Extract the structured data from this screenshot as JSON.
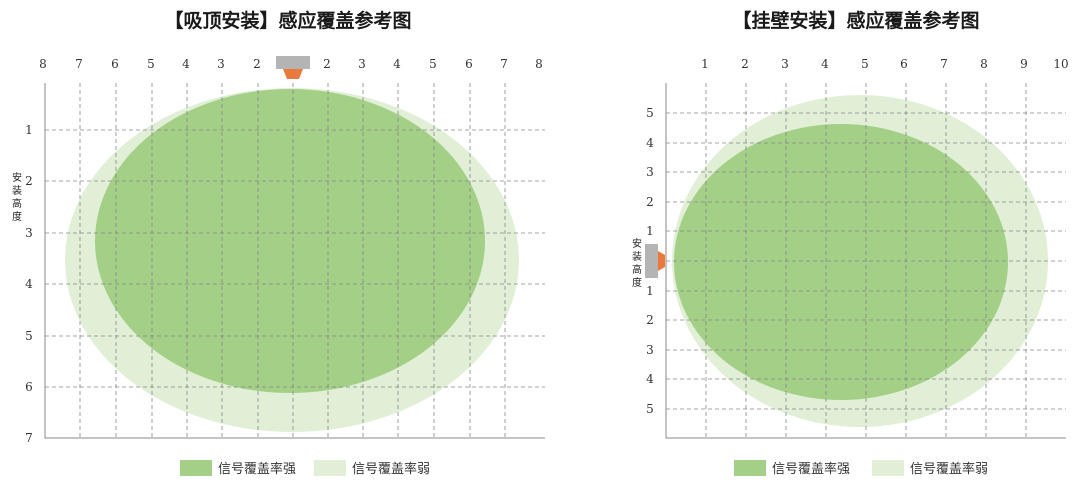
{
  "colors": {
    "strong": "#a3cf87",
    "weak": "#e0efd6",
    "grid": "#888888",
    "frame": "#888888",
    "sensor_body": "#b4b4b4",
    "sensor_lens": "#ea7a3c"
  },
  "left_panel": {
    "title": "【吸顶安装】感应覆盖参考图",
    "top_ticks": [
      "8",
      "7",
      "6",
      "5",
      "4",
      "3",
      "2",
      "2",
      "3",
      "4",
      "5",
      "6",
      "7",
      "8"
    ],
    "left_ticks": [
      "1",
      "2",
      "3",
      "4",
      "5",
      "6",
      "7"
    ],
    "height_label": [
      "安",
      "装",
      "高",
      "度"
    ],
    "legend_strong": "信号覆盖率强",
    "legend_weak": "信号覆盖率弱"
  },
  "right_panel": {
    "title": "【挂壁安装】感应覆盖参考图",
    "top_ticks": [
      "1",
      "2",
      "3",
      "4",
      "5",
      "6",
      "7",
      "8",
      "9",
      "10"
    ],
    "left_ticks_up": [
      "5",
      "4",
      "3",
      "2",
      "1"
    ],
    "left_ticks_down": [
      "1",
      "2",
      "3",
      "4",
      "5"
    ],
    "height_label": [
      "安",
      "装",
      "高",
      "度"
    ],
    "legend_strong": "信号覆盖率强",
    "legend_weak": "信号覆盖率弱"
  }
}
